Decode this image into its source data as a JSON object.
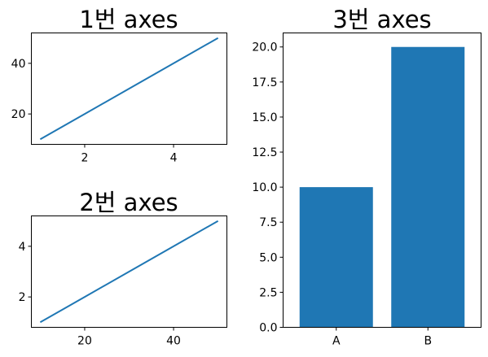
{
  "chart_data": [
    {
      "type": "line",
      "title": "1번 axes",
      "x": [
        1,
        2,
        3,
        4,
        5
      ],
      "y": [
        10,
        20,
        30,
        40,
        50
      ],
      "xlim": [
        0.8,
        5.2
      ],
      "ylim": [
        8,
        52
      ],
      "xticks": [
        2,
        4
      ],
      "yticks": [
        20,
        40
      ],
      "color": "#1f77b4"
    },
    {
      "type": "line",
      "title": "2번 axes",
      "x": [
        10,
        20,
        30,
        40,
        50
      ],
      "y": [
        1,
        2,
        3,
        4,
        5
      ],
      "xlim": [
        8,
        52
      ],
      "ylim": [
        0.8,
        5.2
      ],
      "xticks": [
        20,
        40
      ],
      "yticks": [
        2,
        4
      ],
      "color": "#1f77b4"
    },
    {
      "type": "bar",
      "title": "3번 axes",
      "categories": [
        "A",
        "B"
      ],
      "values": [
        10,
        20
      ],
      "ylim": [
        0,
        21
      ],
      "yticks": [
        "0.0",
        "2.5",
        "5.0",
        "7.5",
        "10.0",
        "12.5",
        "15.0",
        "17.5",
        "20.0"
      ],
      "color": "#1f77b4"
    }
  ]
}
